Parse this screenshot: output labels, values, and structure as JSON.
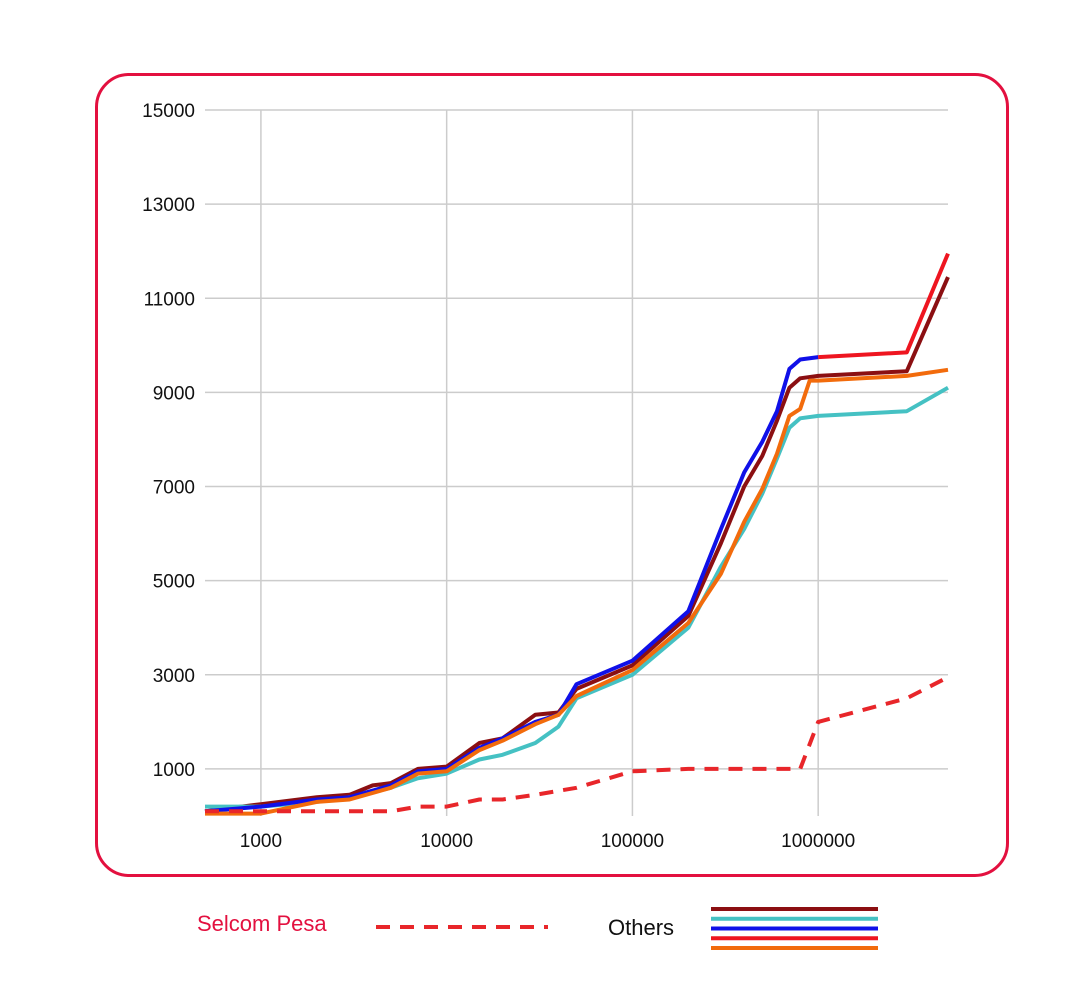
{
  "colors": {
    "frame": "#e3103f",
    "grid": "#cccccc",
    "tick_text": "#111111",
    "selcom_label": "#e3103f",
    "others_label": "#111111"
  },
  "legend": {
    "selcom_label": "Selcom Pesa",
    "others_label": "Others"
  },
  "chart_data": {
    "type": "line",
    "x_scale": "log",
    "xlim": [
      500,
      5000000
    ],
    "ylim": [
      0,
      15000
    ],
    "x_ticks": [
      {
        "value": 1000,
        "label": "1000"
      },
      {
        "value": 10000,
        "label": "10000"
      },
      {
        "value": 100000,
        "label": "100000"
      },
      {
        "value": 1000000,
        "label": "1000000"
      }
    ],
    "y_ticks": [
      {
        "value": 1000,
        "label": "1000"
      },
      {
        "value": 3000,
        "label": "3000"
      },
      {
        "value": 5000,
        "label": "5000"
      },
      {
        "value": 7000,
        "label": "7000"
      },
      {
        "value": 9000,
        "label": "9000"
      },
      {
        "value": 11000,
        "label": "11000"
      },
      {
        "value": 13000,
        "label": "13000"
      },
      {
        "value": 15000,
        "label": "15000"
      }
    ],
    "grid": true,
    "legend_position": "bottom",
    "series": [
      {
        "name": "Selcom Pesa",
        "color": "#e8262a",
        "dashed": true,
        "x": [
          500,
          1000,
          2000,
          5000,
          7000,
          10000,
          15000,
          20000,
          30000,
          50000,
          100000,
          200000,
          500000,
          800000,
          1000000,
          3000000,
          5000000
        ],
        "y": [
          100,
          100,
          100,
          100,
          200,
          200,
          350,
          350,
          450,
          600,
          950,
          1000,
          1000,
          1000,
          2000,
          2500,
          2950
        ]
      },
      {
        "color": "#8b0f12",
        "dashed": false,
        "x": [
          500,
          1000,
          2000,
          3000,
          4000,
          5000,
          7000,
          10000,
          15000,
          20000,
          30000,
          40000,
          50000,
          100000,
          200000,
          300000,
          400000,
          500000,
          600000,
          700000,
          800000,
          1000000,
          3000000,
          5000000
        ],
        "y": [
          100,
          250,
          400,
          450,
          650,
          700,
          1000,
          1050,
          1550,
          1650,
          2150,
          2200,
          2700,
          3200,
          4250,
          5800,
          7000,
          7650,
          8400,
          9100,
          9300,
          9350,
          9450,
          11450
        ]
      },
      {
        "color": "#45c1c3",
        "dashed": false,
        "x": [
          500,
          1000,
          2000,
          3000,
          5000,
          7000,
          10000,
          15000,
          20000,
          30000,
          40000,
          50000,
          100000,
          200000,
          300000,
          400000,
          500000,
          600000,
          700000,
          800000,
          1000000,
          3000000,
          5000000
        ],
        "y": [
          200,
          200,
          300,
          400,
          600,
          800,
          900,
          1200,
          1300,
          1550,
          1900,
          2500,
          3000,
          4000,
          5300,
          6100,
          6850,
          7600,
          8250,
          8450,
          8500,
          8600,
          9100
        ]
      },
      {
        "color": "#1010e8",
        "dashed": false,
        "x": [
          500,
          1000,
          2000,
          3000,
          5000,
          7000,
          10000,
          15000,
          20000,
          30000,
          40000,
          50000,
          100000,
          200000,
          300000,
          400000,
          500000,
          600000,
          700000,
          800000,
          1000000
        ],
        "y": [
          100,
          200,
          350,
          400,
          650,
          950,
          1000,
          1450,
          1650,
          2000,
          2150,
          2800,
          3300,
          4350,
          6100,
          7300,
          7950,
          8600,
          9500,
          9700,
          9750
        ]
      },
      {
        "color": "#ee1520",
        "dashed": false,
        "x": [
          1000000,
          3000000,
          5000000
        ],
        "y": [
          9750,
          9850,
          11950
        ]
      },
      {
        "color": "#f26b0c",
        "dashed": false,
        "x": [
          500,
          1000,
          2000,
          3000,
          5000,
          7000,
          10000,
          15000,
          20000,
          30000,
          40000,
          50000,
          100000,
          200000,
          300000,
          400000,
          500000,
          600000,
          700000,
          800000,
          900000,
          1000000,
          3000000,
          5000000
        ],
        "y": [
          50,
          50,
          300,
          350,
          600,
          900,
          950,
          1400,
          1600,
          1950,
          2150,
          2550,
          3100,
          4100,
          5150,
          6250,
          6950,
          7700,
          8500,
          8650,
          9250,
          9250,
          9350,
          9480
        ]
      }
    ]
  }
}
